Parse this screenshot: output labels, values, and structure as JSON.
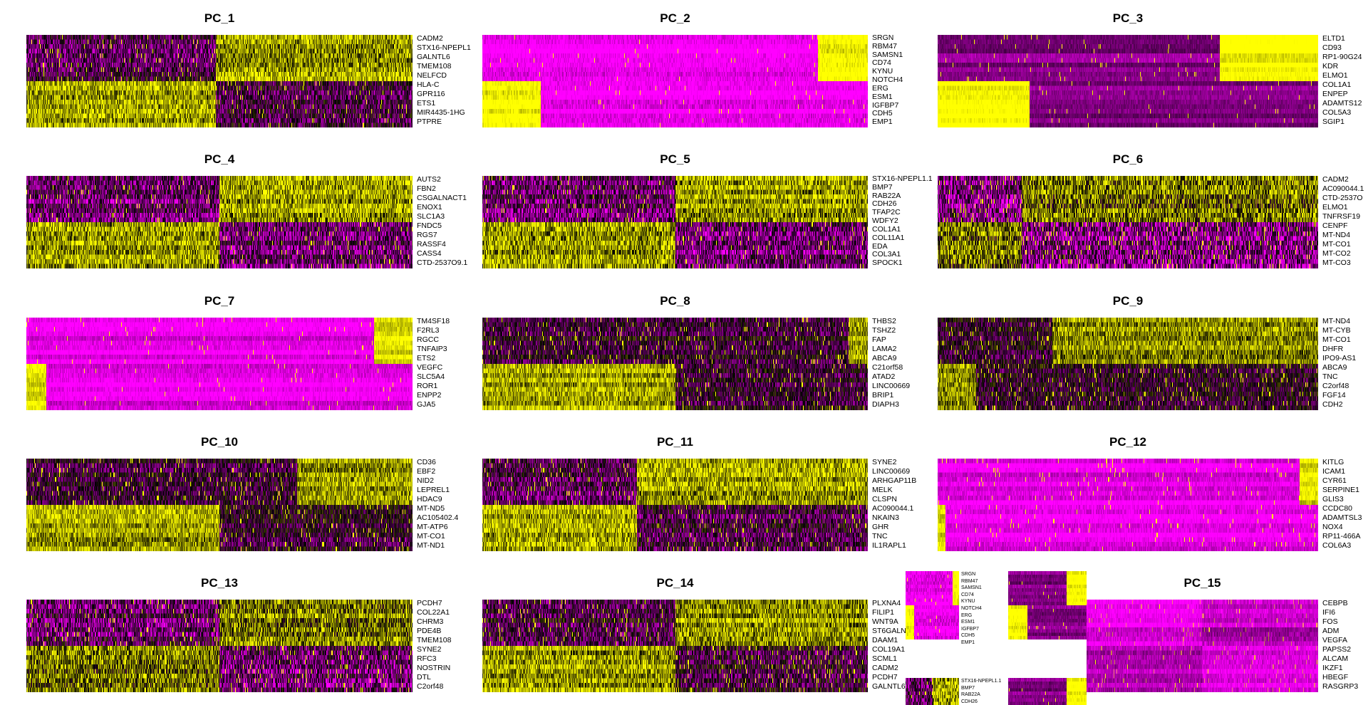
{
  "chart_data": {
    "type": "heatmap",
    "color_scale": {
      "low": "#FF00FF",
      "mid": "#000000",
      "high": "#FFFF00",
      "range": [
        -2.5,
        2.5
      ]
    },
    "panels": [
      {
        "title": "PC_1",
        "genes": [
          "CADM2",
          "STX16-NPEPL1",
          "GALNTL6",
          "TMEM108",
          "NELFCD",
          "HLA-C",
          "GPR116",
          "ETS1",
          "MIR4435-1HG",
          "PTPRE"
        ],
        "split_top": 0.49,
        "split_bottom": 0.49,
        "lo": -0.6,
        "hi": 1.6,
        "noise": 1.2,
        "spike": 0.03
      },
      {
        "title": "PC_2",
        "genes": [
          "SRGN",
          "RBM47",
          "SAMSN1",
          "CD74",
          "KYNU",
          "NOTCH4",
          "ERG",
          "ESM1",
          "IGFBP7",
          "CDH5",
          "EMP1"
        ],
        "split_top": 0.87,
        "split_bottom": 0.15,
        "lo": -2.5,
        "hi": 2.5,
        "noise": 0.5,
        "spike": 0.01
      },
      {
        "title": "PC_3",
        "genes": [
          "ELTD1",
          "CD93",
          "RP1-90G24",
          "KDR",
          "ELMO1",
          "COL1A1",
          "ENPEP",
          "ADAMTS12",
          "COL5A3",
          "SGIP1"
        ],
        "split_top": 0.74,
        "split_bottom": 0.24,
        "lo": -1.3,
        "hi": 2.5,
        "noise": 0.3,
        "spike": 0.015
      },
      {
        "title": "PC_4",
        "genes": [
          "AUTS2",
          "FBN2",
          "CSGALNACT1",
          "ENOX1",
          "SLC1A3",
          "FNDC5",
          "RGS7",
          "RASSF4",
          "CASS4",
          "CTD-2537O9.1"
        ],
        "split_top": 0.5,
        "split_bottom": 0.5,
        "lo": -1.0,
        "hi": 1.5,
        "noise": 1.3,
        "spike": 0.03
      },
      {
        "title": "PC_5",
        "genes": [
          "STX16-NPEPL1.1",
          "BMP7",
          "RAB22A",
          "CDH26",
          "TFAP2C",
          "WDFY2",
          "COL1A1",
          "COL11A1",
          "EDA",
          "COL3A1",
          "SPOCK1"
        ],
        "split_top": 0.5,
        "split_bottom": 0.5,
        "lo": -1.0,
        "hi": 1.5,
        "noise": 1.3,
        "spike": 0.03
      },
      {
        "title": "PC_6",
        "genes": [
          "CADM2",
          "AC090044.1",
          "CTD-2537O",
          "ELMO1",
          "TNFRSF19",
          "CENPF",
          "MT-ND4",
          "MT-CO1",
          "MT-CO2",
          "MT-CO3"
        ],
        "split_top": 0.22,
        "split_bottom": 0.22,
        "lo": -1.2,
        "hi": 1.0,
        "noise": 1.5,
        "spike": 0.05
      },
      {
        "title": "PC_7",
        "genes": [
          "TM4SF18",
          "F2RL3",
          "RGCC",
          "TNFAIP3",
          "ETS2",
          "VEGFC",
          "SLC5A4",
          "ROR1",
          "ENPP2",
          "GJA5"
        ],
        "split_top": 0.9,
        "split_bottom": 0.05,
        "lo": -2.3,
        "hi": 2.2,
        "noise": 0.4,
        "spike": 0.01
      },
      {
        "title": "PC_8",
        "genes": [
          "THBS2",
          "TSHZ2",
          "FAP",
          "LAMA2",
          "ABCA9",
          "C21orf58",
          "ATAD2",
          "LINC00669",
          "BRIP1",
          "DIAPH3"
        ],
        "split_top": 0.95,
        "split_bottom": 0.5,
        "lo": -0.4,
        "hi": 1.6,
        "noise": 1.0,
        "spike": 0.04
      },
      {
        "title": "PC_9",
        "genes": [
          "MT-ND4",
          "MT-CYB",
          "MT-CO1",
          "DHFR",
          "IPO9-AS1",
          "ABCA9",
          "TNC",
          "C2orf48",
          "FGF14",
          "CDH2"
        ],
        "split_top": 0.3,
        "split_bottom": 0.1,
        "lo": -0.3,
        "hi": 1.3,
        "noise": 1.0,
        "spike": 0.04
      },
      {
        "title": "PC_10",
        "genes": [
          "CD36",
          "EBF2",
          "NID2",
          "LEPREL1",
          "HDAC9",
          "MT-ND5",
          "AC105402.4",
          "MT-ATP6",
          "MT-CO1",
          "MT-ND1"
        ],
        "split_top": 0.7,
        "split_bottom": 0.5,
        "lo": -0.5,
        "hi": 1.4,
        "noise": 1.0,
        "spike": 0.04
      },
      {
        "title": "PC_11",
        "genes": [
          "SYNE2",
          "LINC00669",
          "ARHGAP11B",
          "MELK",
          "CLSPN",
          "AC090044.1",
          "NKAIN3",
          "GHR",
          "TNC",
          "IL1RAPL1"
        ],
        "split_top": 0.4,
        "split_bottom": 0.4,
        "lo": -0.8,
        "hi": 1.5,
        "noise": 1.2,
        "spike": 0.03
      },
      {
        "title": "PC_12",
        "genes": [
          "KITLG",
          "ICAM1",
          "CYR61",
          "SERPINE1",
          "GLIS3",
          "CCDC80",
          "ADAMTSL3",
          "NOX4",
          "RP11-466A",
          "COL6A3"
        ],
        "split_top": 0.95,
        "split_bottom": 0.02,
        "lo": -2.3,
        "hi": 2.2,
        "noise": 0.4,
        "spike": 0.02
      },
      {
        "title": "PC_13",
        "genes": [
          "PCDH7",
          "COL22A1",
          "CHRM3",
          "PDE4B",
          "TMEM108",
          "SYNE2",
          "RFC3",
          "NOSTRIN",
          "DTL",
          "C2orf48"
        ],
        "split_top": 0.5,
        "split_bottom": 0.5,
        "lo": -1.0,
        "hi": 1.0,
        "noise": 1.4,
        "spike": 0.04
      },
      {
        "title": "PC_14",
        "genes": [
          "PLXNA4",
          "FILIP1",
          "WNT9A",
          "ST6GALN",
          "DAAM1",
          "COL19A1",
          "SCML1",
          "CADM2",
          "PCDH7",
          "GALNTL6"
        ],
        "split_top": 0.5,
        "split_bottom": 0.5,
        "lo": -0.5,
        "hi": 1.5,
        "noise": 1.2,
        "spike": 0.04
      },
      {
        "title": "PC_15",
        "genes": [
          "CEBPB",
          "IFI6",
          "FOS",
          "ADM",
          "VEGFA",
          "PAPSS2",
          "ALCAM",
          "IKZF1",
          "HBEGF",
          "RASGRP3"
        ],
        "split_top": 0.5,
        "split_bottom": 0.5,
        "lo": -2.3,
        "hi": -1.8,
        "noise": 0.5,
        "spike": 0.02
      }
    ]
  }
}
